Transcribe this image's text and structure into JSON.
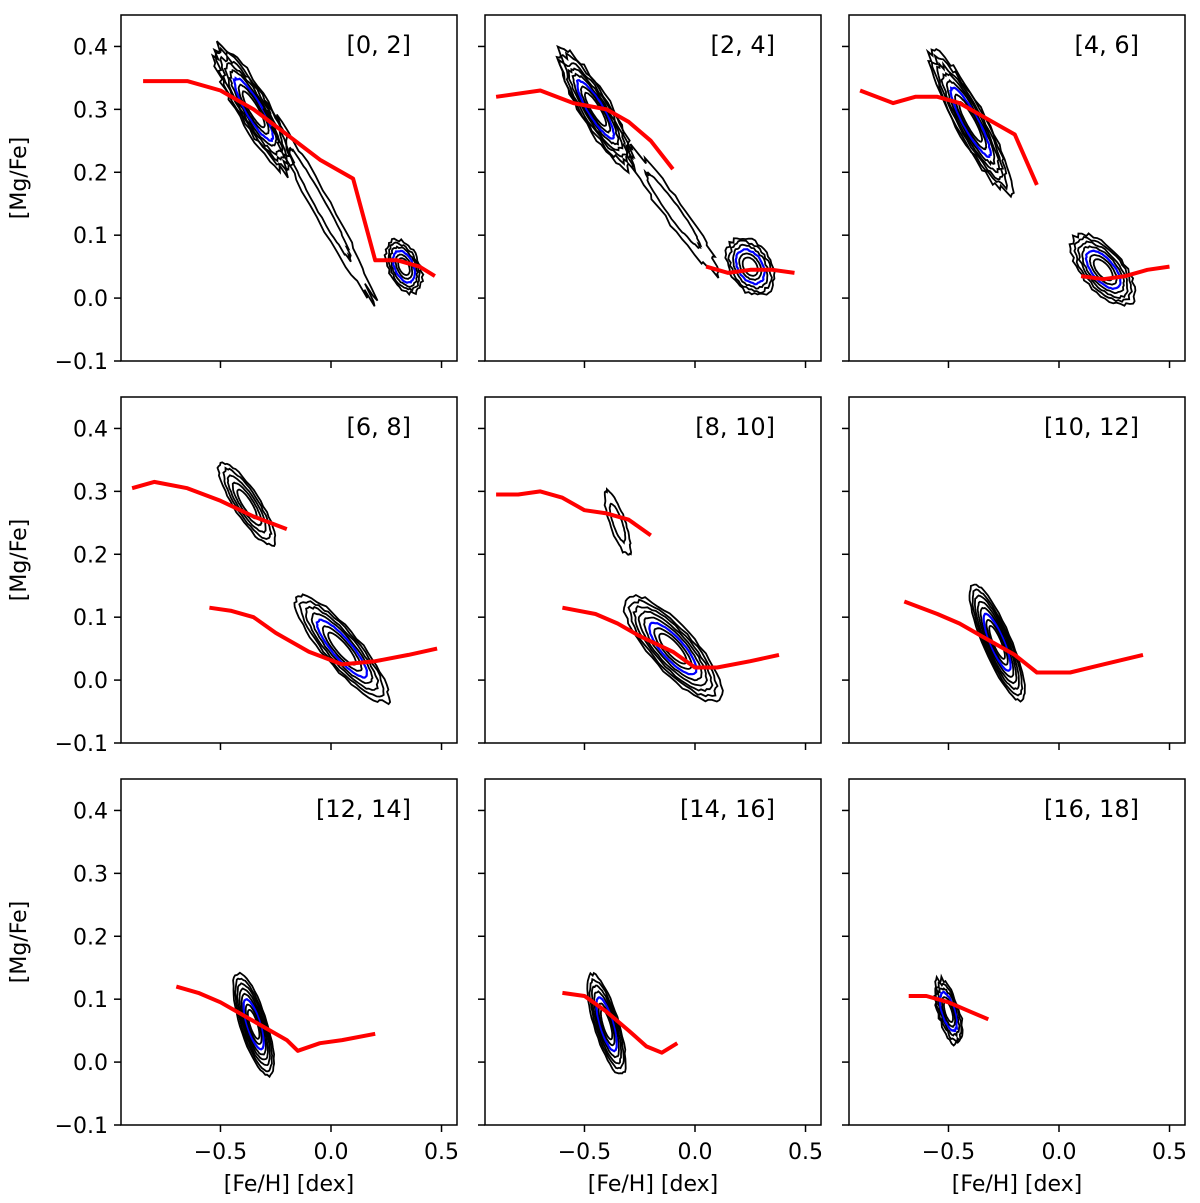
{
  "colors": {
    "contour_outer": "#000000",
    "contour_peak": "#0000ff",
    "trend": "#ff0000",
    "frame": "#000000"
  },
  "axes": {
    "xlabel": "[Fe/H] [dex]",
    "ylabel": "[Mg/Fe]",
    "xlim": [
      -0.95,
      0.57
    ],
    "ylim": [
      -0.1,
      0.45
    ],
    "xticks": [
      -0.5,
      0.0,
      0.5
    ],
    "xtick_labels": [
      "−0.5",
      "0.0",
      "0.5"
    ],
    "yticks": [
      -0.1,
      0.0,
      0.1,
      0.2,
      0.3,
      0.4
    ],
    "ytick_labels": [
      "−0.1",
      "0.0",
      "0.1",
      "0.2",
      "0.3",
      "0.4"
    ]
  },
  "chart_data": [
    {
      "type": "contour",
      "title": "[0, 2]",
      "blobs": [
        {
          "cx": -0.35,
          "cy": 0.3,
          "rx": 0.4,
          "ry": 0.085,
          "angle": -28,
          "peak": true,
          "levels": 8,
          "raggedness": 0.2
        },
        {
          "cx": 0.33,
          "cy": 0.05,
          "rx": 0.17,
          "ry": 0.075,
          "angle": -15,
          "peak": true,
          "levels": 6,
          "raggedness": 0.15
        },
        {
          "cx": -0.05,
          "cy": 0.15,
          "rx": 0.55,
          "ry": 0.05,
          "angle": -32,
          "peak": false,
          "levels": 2,
          "raggedness": 0.3
        }
      ],
      "trend": {
        "x": [
          -0.85,
          -0.65,
          -0.5,
          -0.35,
          -0.2,
          -0.05,
          0.1,
          0.2,
          0.3,
          0.4,
          0.47
        ],
        "y": [
          0.345,
          0.345,
          0.33,
          0.3,
          0.26,
          0.22,
          0.19,
          0.06,
          0.06,
          0.05,
          0.035
        ]
      }
    },
    {
      "type": "contour",
      "title": "[2, 4]",
      "blobs": [
        {
          "cx": -0.45,
          "cy": 0.3,
          "rx": 0.38,
          "ry": 0.08,
          "angle": -27,
          "peak": true,
          "levels": 8,
          "raggedness": 0.18
        },
        {
          "cx": 0.25,
          "cy": 0.05,
          "rx": 0.22,
          "ry": 0.085,
          "angle": -10,
          "peak": true,
          "levels": 6,
          "raggedness": 0.15
        },
        {
          "cx": -0.1,
          "cy": 0.14,
          "rx": 0.45,
          "ry": 0.05,
          "angle": -25,
          "peak": false,
          "levels": 2,
          "raggedness": 0.25
        }
      ],
      "trend": {
        "x": [
          -0.9,
          -0.7,
          -0.55,
          -0.4,
          -0.3,
          -0.2,
          -0.1
        ],
        "y": [
          0.32,
          0.33,
          0.31,
          0.3,
          0.28,
          0.25,
          0.205
        ]
      },
      "trend2": {
        "x": [
          0.05,
          0.15,
          0.25,
          0.35,
          0.45
        ],
        "y": [
          0.05,
          0.04,
          0.045,
          0.045,
          0.04
        ]
      }
    },
    {
      "type": "contour",
      "title": "[4, 6]",
      "blobs": [
        {
          "cx": -0.4,
          "cy": 0.28,
          "rx": 0.42,
          "ry": 0.085,
          "angle": -30,
          "peak": true,
          "levels": 8,
          "raggedness": 0.15
        },
        {
          "cx": 0.2,
          "cy": 0.045,
          "rx": 0.3,
          "ry": 0.085,
          "angle": -15,
          "peak": true,
          "levels": 7,
          "raggedness": 0.12
        }
      ],
      "trend": {
        "x": [
          -0.9,
          -0.75,
          -0.65,
          -0.55,
          -0.45,
          -0.35,
          -0.2,
          -0.1
        ],
        "y": [
          0.33,
          0.31,
          0.32,
          0.32,
          0.31,
          0.29,
          0.26,
          0.18
        ]
      },
      "trend2": {
        "x": [
          0.1,
          0.2,
          0.3,
          0.4,
          0.5
        ],
        "y": [
          0.035,
          0.03,
          0.035,
          0.045,
          0.05
        ]
      }
    },
    {
      "type": "contour",
      "title": "[6, 8]",
      "blobs": [
        {
          "cx": -0.38,
          "cy": 0.28,
          "rx": 0.28,
          "ry": 0.065,
          "angle": -25,
          "peak": false,
          "levels": 5,
          "raggedness": 0.1
        },
        {
          "cx": 0.05,
          "cy": 0.05,
          "rx": 0.45,
          "ry": 0.08,
          "angle": -20,
          "peak": true,
          "levels": 7,
          "raggedness": 0.1
        }
      ],
      "trend": {
        "x": [
          -0.9,
          -0.8,
          -0.65,
          -0.5,
          -0.35,
          -0.2
        ],
        "y": [
          0.305,
          0.315,
          0.305,
          0.285,
          0.26,
          0.24
        ]
      },
      "trend2": {
        "x": [
          -0.55,
          -0.45,
          -0.35,
          -0.25,
          -0.1,
          0.05,
          0.2,
          0.35,
          0.48
        ],
        "y": [
          0.115,
          0.11,
          0.1,
          0.075,
          0.045,
          0.025,
          0.03,
          0.04,
          0.05
        ]
      }
    },
    {
      "type": "contour",
      "title": "[8, 10]",
      "blobs": [
        {
          "cx": -0.1,
          "cy": 0.05,
          "rx": 0.46,
          "ry": 0.095,
          "angle": -18,
          "peak": true,
          "levels": 8,
          "raggedness": 0.08
        },
        {
          "cx": -0.35,
          "cy": 0.25,
          "rx": 0.15,
          "ry": 0.05,
          "angle": -40,
          "peak": false,
          "levels": 2,
          "raggedness": 0.15
        }
      ],
      "trend": {
        "x": [
          -0.9,
          -0.8,
          -0.7,
          -0.6,
          -0.5,
          -0.4,
          -0.3,
          -0.2
        ],
        "y": [
          0.295,
          0.295,
          0.3,
          0.29,
          0.27,
          0.265,
          0.255,
          0.23
        ]
      },
      "trend2": {
        "x": [
          -0.6,
          -0.45,
          -0.35,
          -0.25,
          -0.1,
          0.0,
          0.1,
          0.25,
          0.38
        ],
        "y": [
          0.115,
          0.105,
          0.09,
          0.07,
          0.045,
          0.02,
          0.02,
          0.03,
          0.04
        ]
      }
    },
    {
      "type": "contour",
      "title": "[10, 12]",
      "blobs": [
        {
          "cx": -0.28,
          "cy": 0.06,
          "rx": 0.3,
          "ry": 0.085,
          "angle": -35,
          "peak": true,
          "levels": 8,
          "raggedness": 0.05
        }
      ],
      "trend": {
        "x": [
          -0.7,
          -0.55,
          -0.45,
          -0.35,
          -0.2,
          -0.1,
          0.05,
          0.2,
          0.38
        ],
        "y": [
          0.125,
          0.105,
          0.09,
          0.07,
          0.04,
          0.012,
          0.012,
          0.025,
          0.04
        ]
      }
    },
    {
      "type": "contour",
      "title": "[12, 14]",
      "blobs": [
        {
          "cx": -0.35,
          "cy": 0.06,
          "rx": 0.23,
          "ry": 0.09,
          "angle": -40,
          "peak": true,
          "levels": 8,
          "raggedness": 0.05
        }
      ],
      "trend": {
        "x": [
          -0.7,
          -0.6,
          -0.5,
          -0.4,
          -0.3,
          -0.2,
          -0.15,
          -0.05,
          0.05,
          0.2
        ],
        "y": [
          0.12,
          0.11,
          0.095,
          0.075,
          0.055,
          0.035,
          0.018,
          0.03,
          0.035,
          0.045
        ]
      }
    },
    {
      "type": "contour",
      "title": "[14, 16]",
      "blobs": [
        {
          "cx": -0.4,
          "cy": 0.06,
          "rx": 0.22,
          "ry": 0.085,
          "angle": -42,
          "peak": true,
          "levels": 7,
          "raggedness": 0.07
        }
      ],
      "trend": {
        "x": [
          -0.6,
          -0.5,
          -0.4,
          -0.3,
          -0.22,
          -0.15,
          -0.08
        ],
        "y": [
          0.11,
          0.105,
          0.08,
          0.05,
          0.025,
          0.015,
          0.03
        ]
      }
    },
    {
      "type": "contour",
      "title": "[16, 18]",
      "blobs": [
        {
          "cx": -0.5,
          "cy": 0.08,
          "rx": 0.15,
          "ry": 0.07,
          "angle": -35,
          "peak": true,
          "levels": 6,
          "raggedness": 0.2
        }
      ],
      "trend": {
        "x": [
          -0.68,
          -0.6,
          -0.5,
          -0.4,
          -0.32
        ],
        "y": [
          0.105,
          0.105,
          0.095,
          0.08,
          0.068
        ]
      }
    }
  ]
}
